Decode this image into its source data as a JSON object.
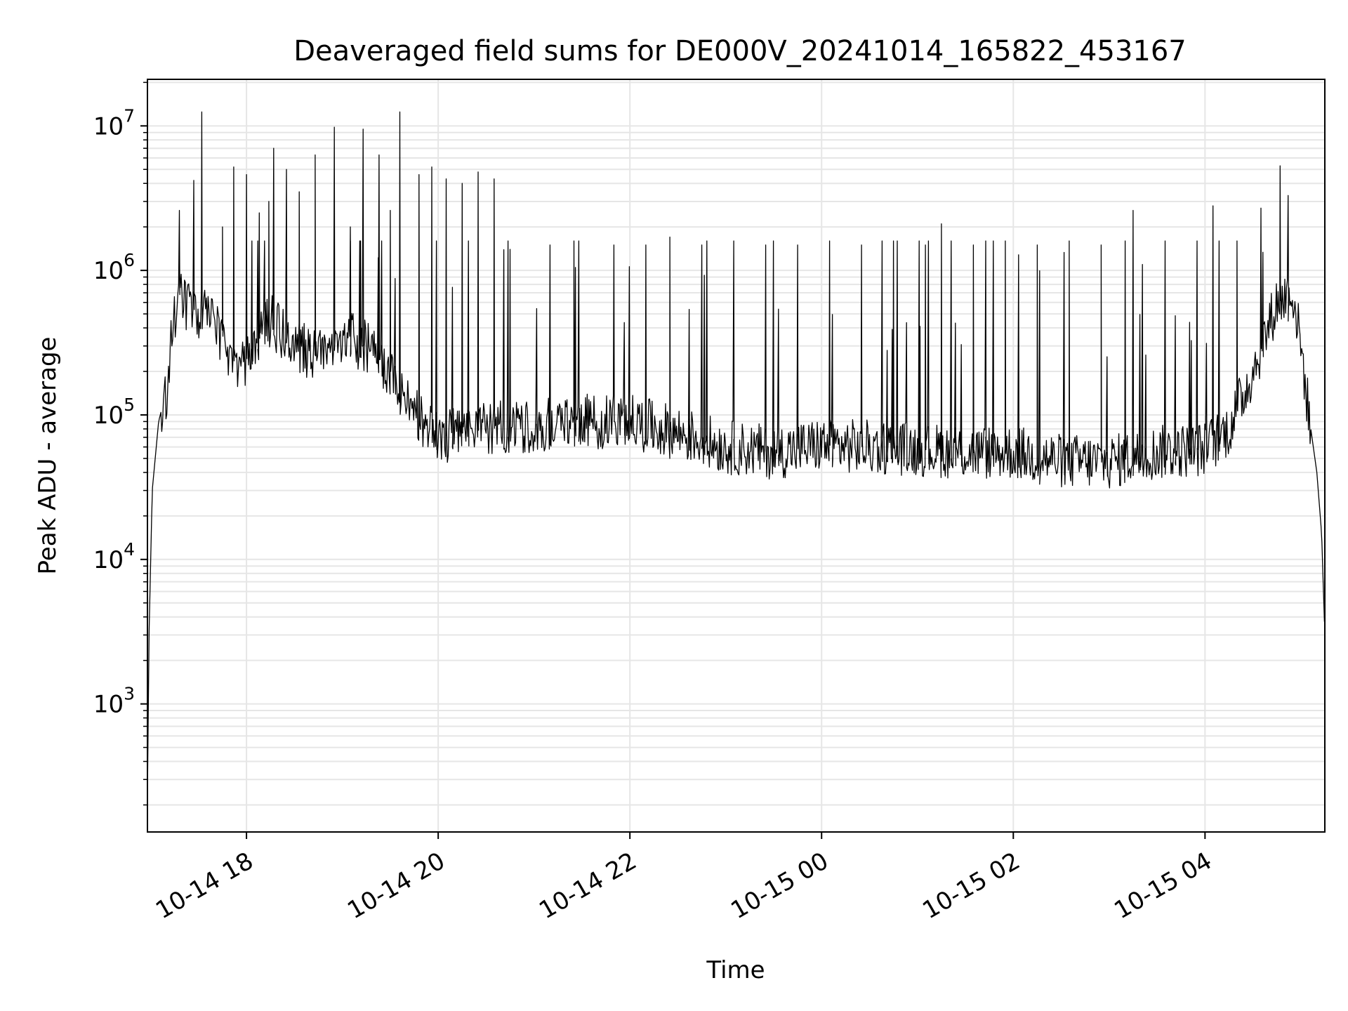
{
  "chart_data": {
    "type": "line",
    "title": "Deaveraged field sums for DE000V_20241014_165822_453167",
    "xlabel": "Time",
    "ylabel": "Peak ADU - average",
    "yscale": "log",
    "grid": true,
    "colors": {
      "line": "#000000",
      "grid": "#e6e6e6",
      "axes": "#000000"
    },
    "xlim": [
      "2024-10-14 16:58",
      "2024-10-15 05:15"
    ],
    "ylim": [
      130,
      21000000
    ],
    "x_ticks": [
      {
        "t": "2024-10-14 18:00",
        "label": "10-14 18"
      },
      {
        "t": "2024-10-14 20:00",
        "label": "10-14 20"
      },
      {
        "t": "2024-10-14 22:00",
        "label": "10-14 22"
      },
      {
        "t": "2024-10-15 00:00",
        "label": "10-15 00"
      },
      {
        "t": "2024-10-15 02:00",
        "label": "10-15 02"
      },
      {
        "t": "2024-10-15 04:00",
        "label": "10-15 04"
      }
    ],
    "y_ticks": [
      {
        "value": 1000,
        "base": "10",
        "exp": "3"
      },
      {
        "value": 10000,
        "base": "10",
        "exp": "4"
      },
      {
        "value": 100000,
        "base": "10",
        "exp": "5"
      },
      {
        "value": 1000000,
        "base": "10",
        "exp": "6"
      },
      {
        "value": 10000000,
        "base": "10",
        "exp": "7"
      }
    ],
    "series": [
      {
        "style": "baseline",
        "points": [
          [
            "2024-10-14 16:58",
            220
          ],
          [
            "2024-10-14 16:59",
            3000
          ],
          [
            "2024-10-14 17:01",
            30000
          ],
          [
            "2024-10-14 17:05",
            90000
          ],
          [
            "2024-10-14 17:10",
            150000
          ],
          [
            "2024-10-14 17:14",
            400000
          ],
          [
            "2024-10-14 17:17",
            700000
          ],
          [
            "2024-10-14 17:25",
            550000
          ],
          [
            "2024-10-14 17:35",
            480000
          ],
          [
            "2024-10-14 17:45",
            350000
          ],
          [
            "2024-10-14 17:55",
            200000
          ],
          [
            "2024-10-14 18:05",
            300000
          ],
          [
            "2024-10-14 18:15",
            450000
          ],
          [
            "2024-10-14 18:30",
            300000
          ],
          [
            "2024-10-14 18:45",
            250000
          ],
          [
            "2024-10-14 19:00",
            350000
          ],
          [
            "2024-10-14 19:15",
            300000
          ],
          [
            "2024-10-14 19:30",
            200000
          ],
          [
            "2024-10-14 19:45",
            100000
          ],
          [
            "2024-10-14 20:00",
            70000
          ],
          [
            "2024-10-14 20:30",
            80000
          ],
          [
            "2024-10-14 21:00",
            85000
          ],
          [
            "2024-10-14 21:30",
            90000
          ],
          [
            "2024-10-14 22:00",
            90000
          ],
          [
            "2024-10-14 22:30",
            75000
          ],
          [
            "2024-10-14 23:00",
            60000
          ],
          [
            "2024-10-14 23:30",
            55000
          ],
          [
            "2024-10-15 00:00",
            62000
          ],
          [
            "2024-10-15 00:30",
            60000
          ],
          [
            "2024-10-15 01:00",
            58000
          ],
          [
            "2024-10-15 01:30",
            55000
          ],
          [
            "2024-10-15 02:00",
            55000
          ],
          [
            "2024-10-15 02:30",
            48000
          ],
          [
            "2024-10-15 03:00",
            47000
          ],
          [
            "2024-10-15 03:30",
            55000
          ],
          [
            "2024-10-15 04:00",
            58000
          ],
          [
            "2024-10-15 04:15",
            80000
          ],
          [
            "2024-10-15 04:30",
            200000
          ],
          [
            "2024-10-15 04:45",
            600000
          ],
          [
            "2024-10-15 04:55",
            700000
          ],
          [
            "2024-10-15 05:00",
            300000
          ],
          [
            "2024-10-15 05:05",
            100000
          ],
          [
            "2024-10-15 05:10",
            40000
          ],
          [
            "2024-10-15 05:13",
            15000
          ],
          [
            "2024-10-15 05:15",
            3000
          ]
        ]
      },
      {
        "style": "spikes",
        "points": [
          [
            "2024-10-14 17:18",
            2600000
          ],
          [
            "2024-10-14 17:27",
            4200000
          ],
          [
            "2024-10-14 17:32",
            12500000
          ],
          [
            "2024-10-14 17:45",
            2000000
          ],
          [
            "2024-10-14 17:52",
            5200000
          ],
          [
            "2024-10-14 18:00",
            4600000
          ],
          [
            "2024-10-14 18:08",
            2500000
          ],
          [
            "2024-10-14 18:14",
            3000000
          ],
          [
            "2024-10-14 18:17",
            7000000
          ],
          [
            "2024-10-14 18:25",
            5000000
          ],
          [
            "2024-10-14 18:33",
            3500000
          ],
          [
            "2024-10-14 18:43",
            6300000
          ],
          [
            "2024-10-14 18:55",
            9800000
          ],
          [
            "2024-10-14 19:05",
            2000000
          ],
          [
            "2024-10-14 19:13",
            9500000
          ],
          [
            "2024-10-14 19:23",
            6300000
          ],
          [
            "2024-10-14 19:30",
            2600000
          ],
          [
            "2024-10-14 19:36",
            12500000
          ],
          [
            "2024-10-14 19:48",
            4600000
          ],
          [
            "2024-10-14 19:56",
            5200000
          ],
          [
            "2024-10-14 20:05",
            4300000
          ],
          [
            "2024-10-14 20:15",
            4000000
          ],
          [
            "2024-10-14 20:25",
            4800000
          ],
          [
            "2024-10-14 20:35",
            4300000
          ],
          [
            "2024-10-14 20:45",
            1400000
          ],
          [
            "2024-10-14 21:10",
            1500000
          ],
          [
            "2024-10-14 21:25",
            1600000
          ],
          [
            "2024-10-14 21:50",
            1500000
          ],
          [
            "2024-10-14 22:10",
            1500000
          ],
          [
            "2024-10-14 22:25",
            1700000
          ],
          [
            "2024-10-14 22:45",
            1500000
          ],
          [
            "2024-10-14 23:05",
            1600000
          ],
          [
            "2024-10-14 23:25",
            1500000
          ],
          [
            "2024-10-14 23:45",
            1500000
          ],
          [
            "2024-10-15 00:05",
            1600000
          ],
          [
            "2024-10-15 00:25",
            1500000
          ],
          [
            "2024-10-15 00:45",
            1600000
          ],
          [
            "2024-10-15 01:05",
            1500000
          ],
          [
            "2024-10-15 01:15",
            2100000
          ],
          [
            "2024-10-15 01:35",
            1500000
          ],
          [
            "2024-10-15 01:55",
            1600000
          ],
          [
            "2024-10-15 02:15",
            1500000
          ],
          [
            "2024-10-15 02:35",
            1600000
          ],
          [
            "2024-10-15 02:55",
            1500000
          ],
          [
            "2024-10-15 03:10",
            1600000
          ],
          [
            "2024-10-15 03:15",
            2600000
          ],
          [
            "2024-10-15 03:35",
            1600000
          ],
          [
            "2024-10-15 03:55",
            1600000
          ],
          [
            "2024-10-15 04:05",
            2800000
          ],
          [
            "2024-10-15 04:20",
            1600000
          ],
          [
            "2024-10-15 04:35",
            2700000
          ],
          [
            "2024-10-15 04:47",
            5300000
          ],
          [
            "2024-10-15 04:52",
            3300000
          ]
        ]
      }
    ]
  }
}
